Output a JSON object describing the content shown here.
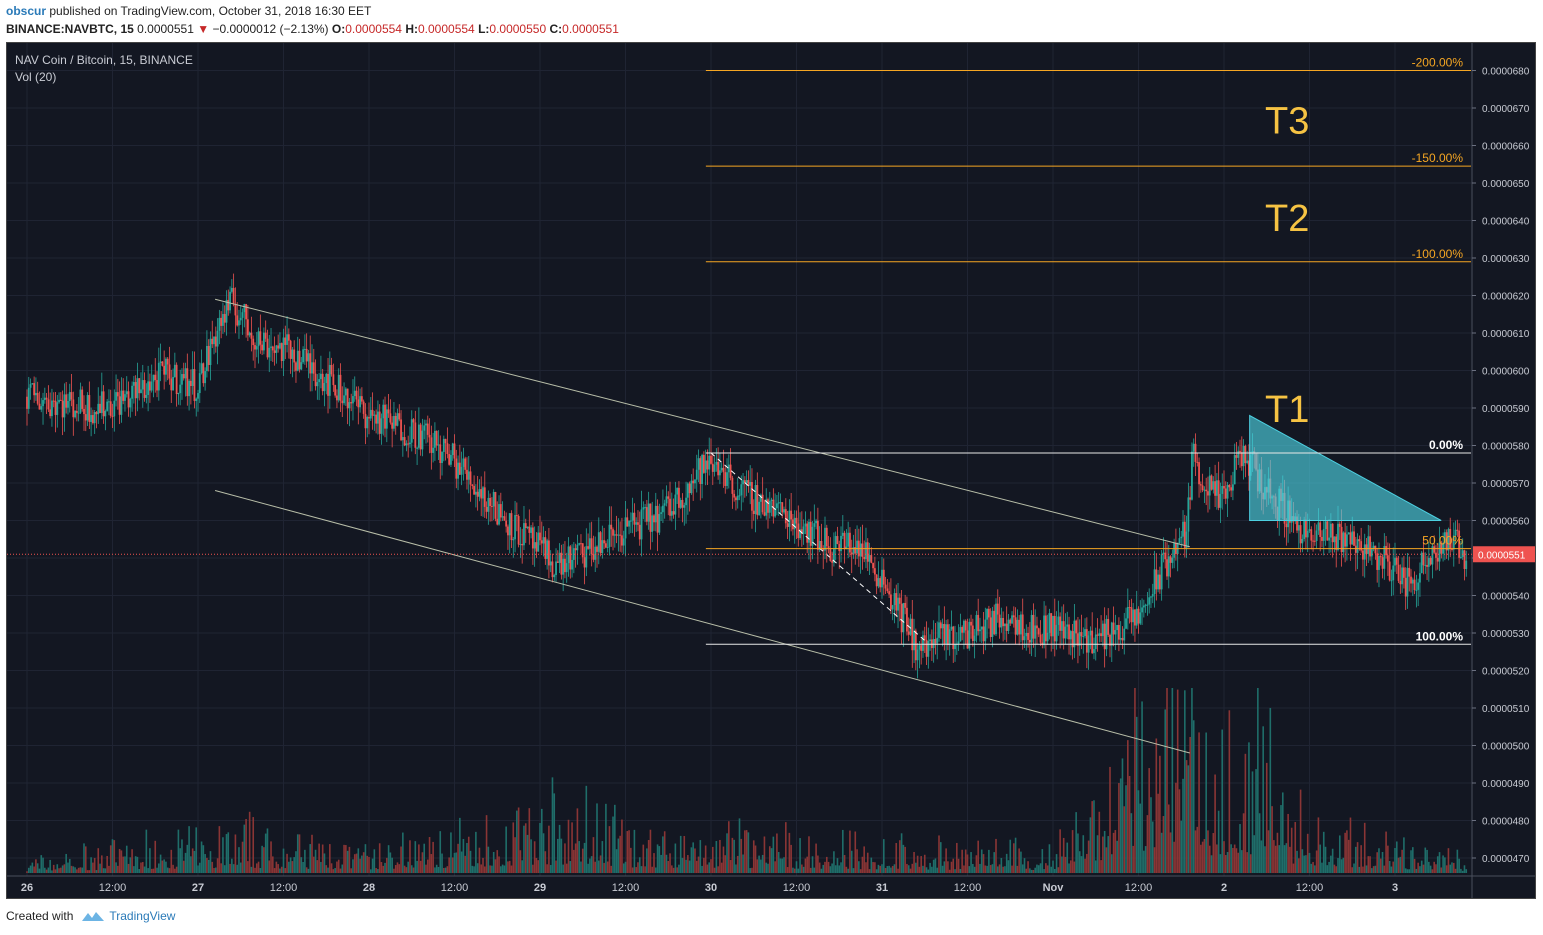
{
  "header": {
    "user": "obscur",
    "published": "published on TradingView.com, October 31, 2018 16:30 EET",
    "symbol": "BINANCE:NAVBTC, 15",
    "last": "0.0000551",
    "down_arrow": "▼",
    "change": "−0.0000012 (−2.13%)",
    "o_label": "O:",
    "o_value": "0.0000554",
    "h_label": "H:",
    "h_value": "0.0000554",
    "l_label": "L:",
    "l_value": "0.0000550",
    "c_label": "C:",
    "c_value": "0.0000551"
  },
  "legend": {
    "title": "NAV Coin / Bitcoin, 15, BINANCE",
    "volume": "Vol (20)"
  },
  "footer": {
    "created": "Created with",
    "brand": "TradingView"
  },
  "colors": {
    "background": "#131722",
    "up": "#26a69a",
    "down": "#ef5350",
    "fib_orange": "#f5a623",
    "target_text": "#f6c343",
    "triangle": "#4dd0e1"
  },
  "chart_data": {
    "type": "candlestick",
    "instrument": "NAVBTC",
    "interval": "15",
    "exchange": "BINANCE",
    "y_range": [
      4.66e-05,
      6.86e-05
    ],
    "y_ticks": [
      "0.0000680",
      "0.0000670",
      "0.0000660",
      "0.0000650",
      "0.0000640",
      "0.0000630",
      "0.0000620",
      "0.0000610",
      "0.0000600",
      "0.0000590",
      "0.0000580",
      "0.0000570",
      "0.0000560",
      "0.0000550",
      "0.0000540",
      "0.0000530",
      "0.0000520",
      "0.0000510",
      "0.0000500",
      "0.0000490",
      "0.0000480",
      "0.0000470"
    ],
    "x_ticks": [
      "26",
      "12:00",
      "27",
      "12:00",
      "28",
      "12:00",
      "29",
      "12:00",
      "30",
      "12:00",
      "31",
      "12:00",
      "Nov",
      "12:00",
      "2",
      "12:00",
      "3"
    ],
    "last_price": "0.0000551",
    "fib_levels": [
      {
        "label": "-200.00%",
        "price": 6.8e-05
      },
      {
        "label": "-150.00%",
        "price": 6.545e-05
      },
      {
        "label": "-100.00%",
        "price": 6.29e-05
      },
      {
        "label": "0.00%",
        "price": 5.78e-05
      },
      {
        "label": "50.00%",
        "price": 5.525e-05
      },
      {
        "label": "100.00%",
        "price": 5.27e-05
      }
    ],
    "targets": [
      {
        "label": "T3",
        "price": 6.67e-05
      },
      {
        "label": "T2",
        "price": 6.41e-05
      },
      {
        "label": "T1",
        "price": 5.9e-05
      }
    ],
    "price_path": [
      [
        0,
        5.93e-05
      ],
      [
        0.4,
        5.9e-05
      ],
      [
        0.6,
        5.93e-05
      ],
      [
        0.8,
        5.99e-05
      ],
      [
        1.0,
        5.96e-05
      ],
      [
        1.12,
        6.12e-05
      ],
      [
        1.2,
        6.18e-05
      ],
      [
        1.35,
        6.08e-05
      ],
      [
        1.55,
        6.05e-05
      ],
      [
        1.75,
        5.98e-05
      ],
      [
        2.0,
        5.88e-05
      ],
      [
        2.3,
        5.83e-05
      ],
      [
        2.5,
        5.76e-05
      ],
      [
        2.7,
        5.65e-05
      ],
      [
        2.9,
        5.56e-05
      ],
      [
        3.1,
        5.48e-05
      ],
      [
        3.3,
        5.52e-05
      ],
      [
        3.5,
        5.58e-05
      ],
      [
        3.7,
        5.61e-05
      ],
      [
        3.85,
        5.68e-05
      ],
      [
        3.95,
        5.74e-05
      ],
      [
        4.06,
        5.75e-05
      ],
      [
        4.15,
        5.68e-05
      ],
      [
        4.3,
        5.65e-05
      ],
      [
        4.5,
        5.6e-05
      ],
      [
        4.7,
        5.53e-05
      ],
      [
        4.85,
        5.54e-05
      ],
      [
        5.0,
        5.45e-05
      ],
      [
        5.1,
        5.36e-05
      ],
      [
        5.22,
        5.25e-05
      ],
      [
        5.3,
        5.28e-05
      ],
      [
        5.5,
        5.3e-05
      ],
      [
        5.75,
        5.35e-05
      ],
      [
        5.9,
        5.3e-05
      ],
      [
        6.0,
        5.32e-05
      ],
      [
        6.25,
        5.28e-05
      ],
      [
        6.5,
        5.34e-05
      ],
      [
        6.65,
        5.48e-05
      ],
      [
        6.78,
        5.57e-05
      ],
      [
        6.82,
        5.78e-05
      ],
      [
        6.9,
        5.68e-05
      ],
      [
        7.0,
        5.65e-05
      ],
      [
        7.1,
        5.78e-05
      ],
      [
        7.2,
        5.72e-05
      ],
      [
        7.3,
        5.65e-05
      ],
      [
        7.4,
        5.61e-05
      ],
      [
        7.5,
        5.55e-05
      ],
      [
        7.7,
        5.56e-05
      ],
      [
        7.85,
        5.52e-05
      ],
      [
        8.0,
        5.47e-05
      ],
      [
        8.1,
        5.42e-05
      ],
      [
        8.2,
        5.52e-05
      ],
      [
        8.3,
        5.55e-05
      ],
      [
        8.42,
        5.51e-05
      ]
    ],
    "volume_range": [
      0,
      4.8
    ],
    "volume_path": [
      [
        0,
        0.3
      ],
      [
        1.2,
        0.9
      ],
      [
        2.0,
        0.5
      ],
      [
        3.2,
        1.5
      ],
      [
        3.6,
        0.8
      ],
      [
        4.0,
        0.9
      ],
      [
        5.0,
        0.6
      ],
      [
        6.0,
        0.5
      ],
      [
        6.8,
        4.6
      ],
      [
        7.0,
        2.0
      ],
      [
        7.2,
        3.5
      ],
      [
        7.4,
        1.5
      ],
      [
        8.0,
        0.6
      ],
      [
        8.42,
        0.3
      ]
    ],
    "annotations": {
      "channel_upper": [
        [
          1.1,
          6.19e-05
        ],
        [
          6.8,
          5.53e-05
        ]
      ],
      "channel_lower": [
        [
          1.1,
          5.68e-05
        ],
        [
          6.8,
          4.98e-05
        ]
      ],
      "dashed_line": [
        [
          4.0,
          5.78e-05
        ],
        [
          5.25,
          5.28e-05
        ]
      ],
      "triangle": [
        [
          7.15,
          5.88e-05
        ],
        [
          7.15,
          5.6e-05
        ],
        [
          8.27,
          5.6e-05
        ]
      ]
    }
  }
}
